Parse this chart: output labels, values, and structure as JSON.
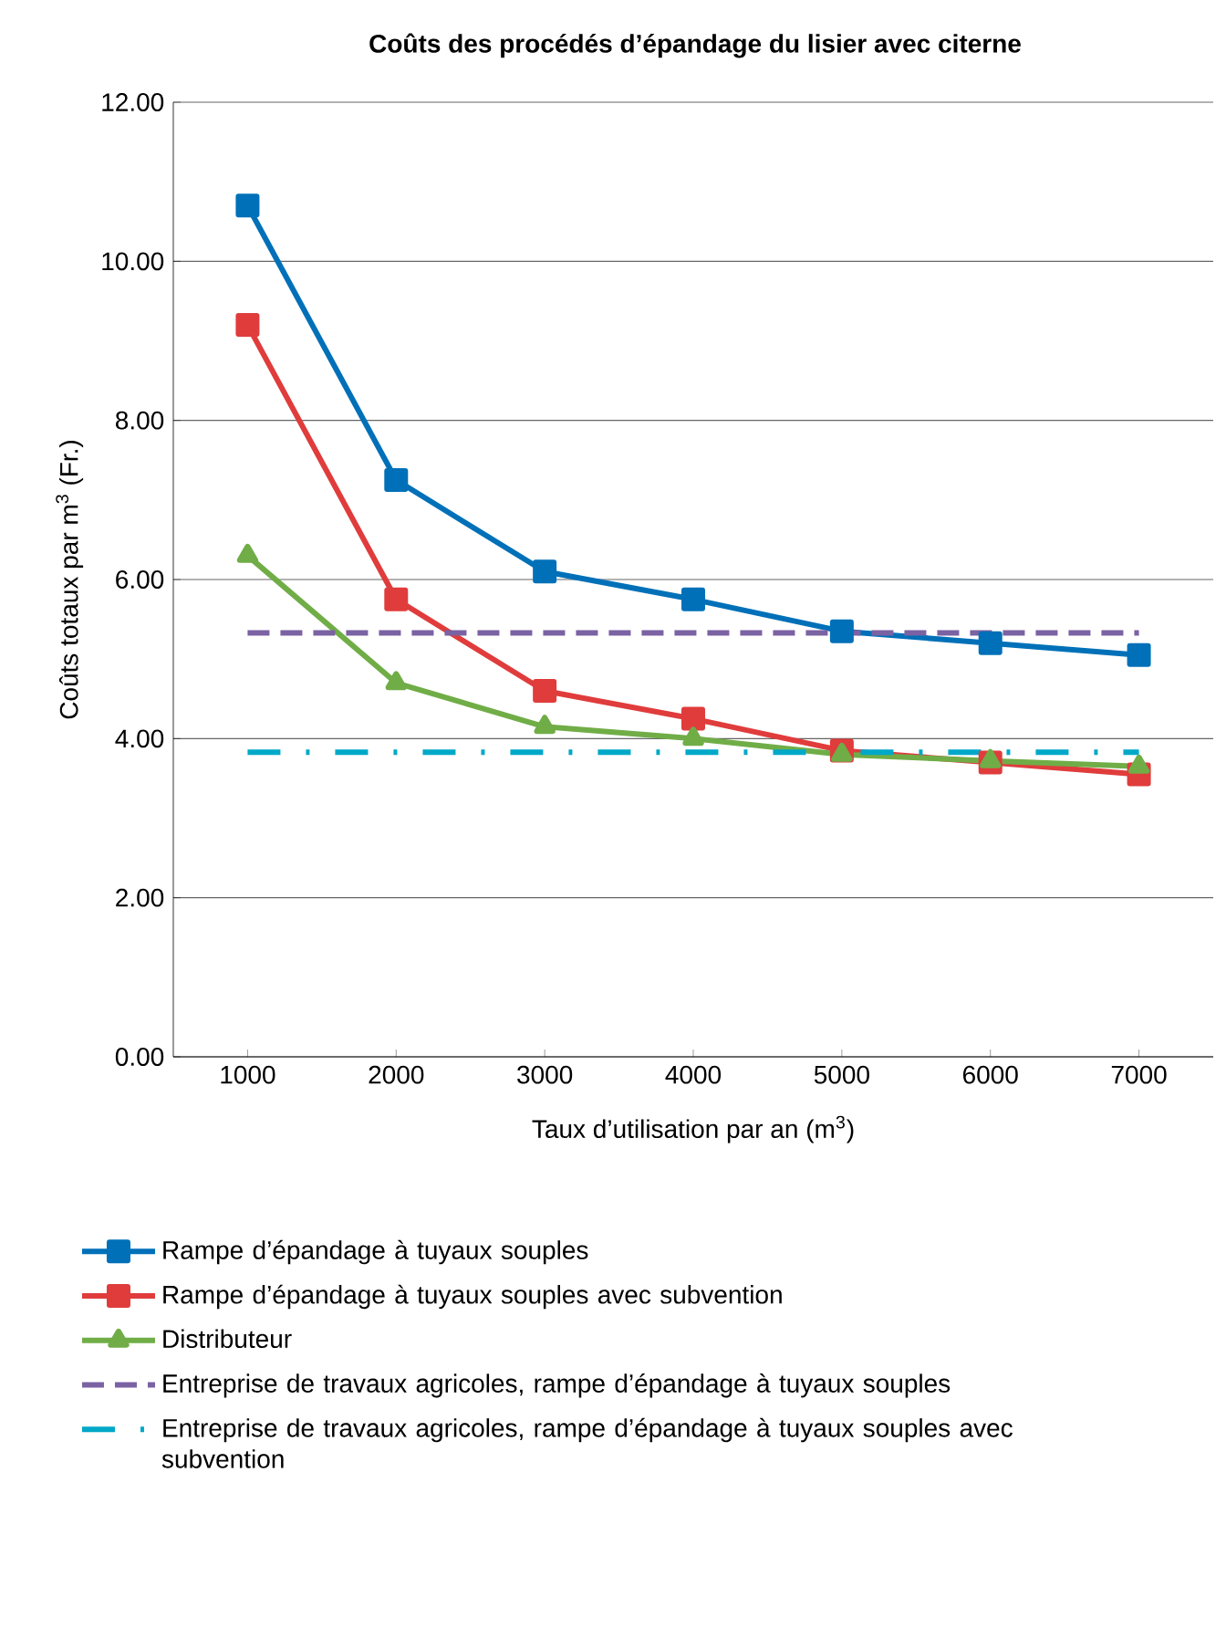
{
  "chart_data": {
    "type": "line",
    "title": "Coûts des procédés d’épandage du lisier avec citerne",
    "xlabel": "Taux d’utilisation par an (m$^{3}$)",
    "ylabel": "Coûts totaux par m$^{3}$ (Fr.)",
    "categories": [
      "1000",
      "2000",
      "3000",
      "4000",
      "5000",
      "6000",
      "7000"
    ],
    "series": [
      {
        "name": "Rampe d’épandage à tuyaux souples",
        "color": "#0070b8",
        "marker": "square",
        "line_style": "solid",
        "values": [
          10.7,
          7.25,
          6.1,
          5.75,
          5.35,
          5.2,
          5.05
        ]
      },
      {
        "name": "Rampe d’épandage à tuyaux souples avec subvention",
        "color": "#e03c3c",
        "marker": "square",
        "line_style": "solid",
        "values": [
          9.2,
          5.75,
          4.6,
          4.25,
          3.85,
          3.7,
          3.55
        ]
      },
      {
        "name": "Distributeur",
        "color": "#70ad47",
        "marker": "triangle",
        "line_style": "solid",
        "values": [
          6.3,
          4.7,
          4.15,
          4.0,
          3.8,
          3.72,
          3.65
        ]
      },
      {
        "name": "Entreprise de travaux agricoles, rampe d’épandage à tuyaux souples",
        "color": "#7a62a3",
        "marker": "none",
        "line_style": "dashed",
        "values": [
          5.33,
          5.33,
          5.33,
          5.33,
          5.33,
          5.33,
          5.33
        ]
      },
      {
        "name": "Entreprise de travaux agricoles, rampe d’épandage à tuyaux souples avec subvention",
        "color": "#00a8c8",
        "marker": "none",
        "line_style": "dashdot",
        "values": [
          3.83,
          3.83,
          3.83,
          3.83,
          3.83,
          3.83,
          3.83
        ]
      }
    ],
    "ylim": [
      0,
      12
    ],
    "yticks": [
      {
        "value": 0,
        "label": "0.00"
      },
      {
        "value": 2,
        "label": "2.00"
      },
      {
        "value": 4,
        "label": "4.00"
      },
      {
        "value": 6,
        "label": "6.00"
      },
      {
        "value": 8,
        "label": "8.00"
      },
      {
        "value": 10,
        "label": "10.00"
      },
      {
        "value": 12,
        "label": "12.00"
      }
    ],
    "grid": "y",
    "legend": "bottom"
  }
}
